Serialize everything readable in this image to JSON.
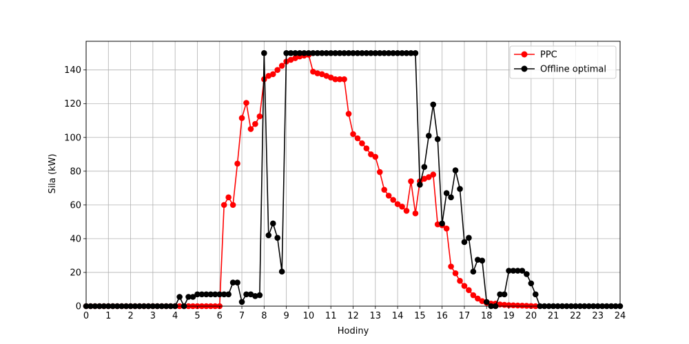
{
  "chart_data": {
    "type": "line",
    "title": "",
    "xlabel": "Hodiny",
    "ylabel": "Sila (kW)",
    "xlim": [
      0,
      24
    ],
    "ylim": [
      0,
      157
    ],
    "xticks": [
      0,
      1,
      2,
      3,
      4,
      5,
      6,
      7,
      8,
      9,
      10,
      11,
      12,
      13,
      14,
      15,
      16,
      17,
      18,
      19,
      20,
      21,
      22,
      23,
      24
    ],
    "yticks": [
      0,
      20,
      40,
      60,
      80,
      100,
      120,
      140
    ],
    "grid": true,
    "legend_position": "top-right",
    "series": [
      {
        "name": "PPC",
        "color": "#ff0000",
        "marker": "circle",
        "x": [
          0,
          0.2,
          0.4,
          0.6,
          0.8,
          1,
          1.2,
          1.4,
          1.6,
          1.8,
          2,
          2.2,
          2.4,
          2.6,
          2.8,
          3,
          3.2,
          3.4,
          3.6,
          3.8,
          4,
          4.2,
          4.4,
          4.6,
          4.8,
          5,
          5.2,
          5.4,
          5.6,
          5.8,
          6,
          6.2,
          6.4,
          6.6,
          6.8,
          7,
          7.2,
          7.4,
          7.6,
          7.8,
          8,
          8.2,
          8.4,
          8.6,
          8.8,
          9,
          9.2,
          9.4,
          9.6,
          9.8,
          10,
          10.2,
          10.4,
          10.6,
          10.8,
          11,
          11.2,
          11.4,
          11.6,
          11.8,
          12,
          12.2,
          12.4,
          12.6,
          12.8,
          13,
          13.2,
          13.4,
          13.6,
          13.8,
          14,
          14.2,
          14.4,
          14.6,
          14.8,
          15,
          15.2,
          15.4,
          15.6,
          15.8,
          16,
          16.2,
          16.4,
          16.6,
          16.8,
          17,
          17.2,
          17.4,
          17.6,
          17.8,
          18,
          18.2,
          18.4,
          18.6,
          18.8,
          19,
          19.2,
          19.4,
          19.6,
          19.8,
          20,
          20.2
        ],
        "y": [
          0,
          0,
          0,
          0,
          0,
          0,
          0,
          0,
          0,
          0,
          0,
          0,
          0,
          0,
          0,
          0,
          0,
          0,
          0,
          0,
          0,
          0,
          0,
          0,
          0,
          0,
          0,
          0,
          0,
          0,
          0,
          60,
          64.5,
          60,
          84.5,
          111.5,
          120.5,
          105,
          108,
          112.5,
          134.5,
          136.5,
          137.5,
          140,
          142.5,
          145,
          146,
          147,
          148,
          148.5,
          149,
          139,
          138,
          137.5,
          136.5,
          135.5,
          134.5,
          134.5,
          134.5,
          114,
          102,
          99.5,
          96.5,
          93.5,
          90,
          88.5,
          79.5,
          69,
          65.5,
          63,
          60.5,
          59,
          56.5,
          74,
          55,
          74,
          75.5,
          76.5,
          78,
          48.5,
          48,
          46,
          23.5,
          19.5,
          15,
          12,
          9.5,
          6.5,
          4.5,
          3,
          2,
          1.5,
          1.5,
          1,
          0.8,
          0.6,
          0.5,
          0.4,
          0.3,
          0.2,
          0.1,
          0
        ]
      },
      {
        "name": "Offline optimal",
        "color": "#000000",
        "marker": "circle",
        "x": [
          0,
          0.2,
          0.4,
          0.6,
          0.8,
          1,
          1.2,
          1.4,
          1.6,
          1.8,
          2,
          2.2,
          2.4,
          2.6,
          2.8,
          3,
          3.2,
          3.4,
          3.6,
          3.8,
          4,
          4.2,
          4.4,
          4.6,
          4.8,
          5,
          5.2,
          5.4,
          5.6,
          5.8,
          6,
          6.2,
          6.4,
          6.6,
          6.8,
          7,
          7.2,
          7.4,
          7.6,
          7.8,
          8,
          8.2,
          8.4,
          8.6,
          8.8,
          9,
          9.2,
          9.4,
          9.6,
          9.8,
          10,
          10.2,
          10.4,
          10.6,
          10.8,
          11,
          11.2,
          11.4,
          11.6,
          11.8,
          12,
          12.2,
          12.4,
          12.6,
          12.8,
          13,
          13.2,
          13.4,
          13.6,
          13.8,
          14,
          14.2,
          14.4,
          14.6,
          14.8,
          15,
          15.2,
          15.4,
          15.6,
          15.8,
          16,
          16.2,
          16.4,
          16.6,
          16.8,
          17,
          17.2,
          17.4,
          17.6,
          17.8,
          18,
          18.2,
          18.4,
          18.6,
          18.8,
          19,
          19.2,
          19.4,
          19.6,
          19.8,
          20,
          20.2,
          20.4,
          20.6,
          20.8,
          21,
          21.2,
          21.4,
          21.6,
          21.8,
          22,
          22.2,
          22.4,
          22.6,
          22.8,
          23,
          23.2,
          23.4,
          23.6,
          23.8,
          24
        ],
        "y": [
          0,
          0,
          0,
          0,
          0,
          0,
          0,
          0,
          0,
          0,
          0,
          0,
          0,
          0,
          0,
          0,
          0,
          0,
          0,
          0,
          0,
          5.5,
          0,
          5.5,
          5.5,
          7,
          7,
          7,
          7,
          7,
          7,
          7,
          7,
          14,
          14,
          2.5,
          7,
          7,
          6,
          6.5,
          150,
          42,
          49,
          40.5,
          20.5,
          150,
          150,
          150,
          150,
          150,
          150,
          150,
          150,
          150,
          150,
          150,
          150,
          150,
          150,
          150,
          150,
          150,
          150,
          150,
          150,
          150,
          150,
          150,
          150,
          150,
          150,
          150,
          150,
          150,
          150,
          72,
          82.5,
          101,
          119.5,
          99,
          49,
          67,
          64.5,
          80.5,
          69.5,
          38,
          40.5,
          20.5,
          27.5,
          27,
          2.5,
          0,
          0,
          7,
          7,
          21,
          21,
          21,
          21,
          19,
          13.5,
          7,
          0,
          0,
          0,
          0,
          0,
          0,
          0,
          0,
          0,
          0,
          0,
          0,
          0,
          0,
          0,
          0,
          0,
          0,
          0
        ]
      }
    ]
  }
}
